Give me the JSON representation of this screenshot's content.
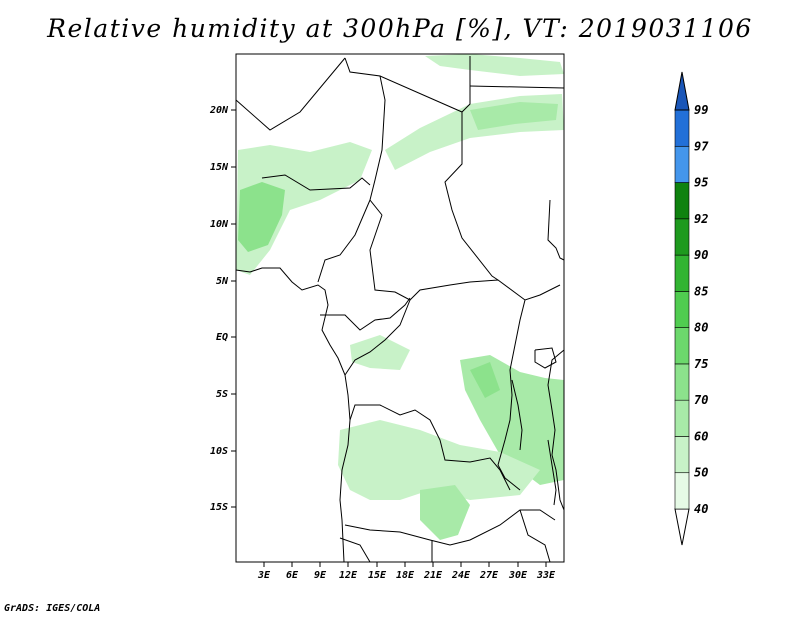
{
  "title": "Relative humidity at 300hPa [%], VT: 2019031106",
  "credit": "GrADS: IGES/COLA",
  "map": {
    "lat_ticks": [
      "20N",
      "15N",
      "10N",
      "5N",
      "EQ",
      "5S",
      "10S",
      "15S"
    ],
    "lon_ticks": [
      "3E",
      "6E",
      "9E",
      "12E",
      "15E",
      "18E",
      "21E",
      "24E",
      "27E",
      "30E",
      "33E"
    ]
  },
  "colorbar": {
    "levels": [
      "40",
      "50",
      "60",
      "70",
      "75",
      "80",
      "85",
      "90",
      "92",
      "95",
      "97",
      "99"
    ],
    "colors": [
      "#ffffff",
      "#e6fae6",
      "#c8f2c8",
      "#a8eaa8",
      "#8ce28c",
      "#6cd86c",
      "#50cc50",
      "#32b432",
      "#1e9a1e",
      "#0f820f",
      "#4496ec",
      "#2270d8",
      "#1a56b8"
    ]
  }
}
